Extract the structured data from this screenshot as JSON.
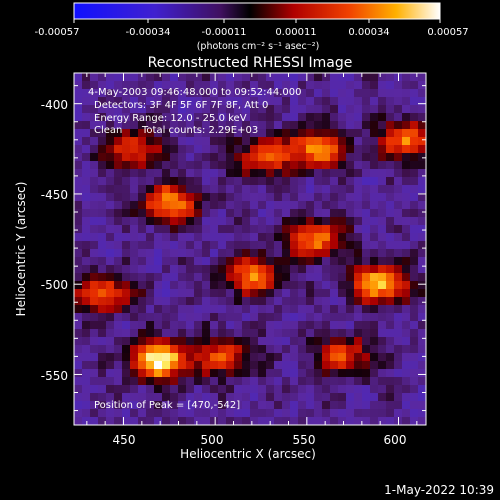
{
  "colorbar": {
    "ticks": [
      "-0.00057",
      "-0.00034",
      "-0.00011",
      "0.00011",
      "0.00034",
      "0.00057"
    ],
    "units": "(photons cm⁻² s⁻¹ asec⁻²)"
  },
  "plot": {
    "title": "Reconstructed RHESSI Image",
    "xlabel": "Heliocentric X (arcsec)",
    "ylabel": "Heliocentric Y (arcsec)",
    "xticks": [
      "450",
      "500",
      "550",
      "600"
    ],
    "yticks": [
      "-400",
      "-450",
      "-500",
      "-550"
    ]
  },
  "annotations": {
    "time_range": "4-May-2003 09:46:48.000 to 09:52:44.000",
    "detectors": "Detectors: 3F 4F 5F 6F 7F 8F, Att 0",
    "energy": "Energy Range: 12.0 - 25.0 keV",
    "clean_label": "Clean",
    "total_counts": "Total counts: 2.29E+03",
    "peak": "Position of Peak = [470,-542]"
  },
  "footer": {
    "timestamp": "1-May-2022 10:39"
  },
  "chart_data": {
    "type": "heatmap",
    "title": "Reconstructed RHESSI Image",
    "xlabel": "Heliocentric X (arcsec)",
    "ylabel": "Heliocentric Y (arcsec)",
    "xlim": [
      423,
      615
    ],
    "ylim": [
      -578,
      -383
    ],
    "colorbar_range": [
      -0.00057,
      0.00057
    ],
    "peak": {
      "x": 470,
      "y": -542
    },
    "bright_regions": [
      {
        "x": 470,
        "y": -542,
        "level": 1.0
      },
      {
        "x": 555,
        "y": -425,
        "level": 0.75
      },
      {
        "x": 605,
        "y": -420,
        "level": 0.7
      },
      {
        "x": 590,
        "y": -500,
        "level": 0.85
      },
      {
        "x": 555,
        "y": -475,
        "level": 0.7
      },
      {
        "x": 520,
        "y": -495,
        "level": 0.7
      },
      {
        "x": 475,
        "y": -455,
        "level": 0.75
      },
      {
        "x": 440,
        "y": -505,
        "level": 0.65
      },
      {
        "x": 455,
        "y": -425,
        "level": 0.6
      },
      {
        "x": 525,
        "y": -430,
        "level": 0.6
      },
      {
        "x": 570,
        "y": -540,
        "level": 0.6
      },
      {
        "x": 505,
        "y": -540,
        "level": 0.55
      }
    ]
  }
}
